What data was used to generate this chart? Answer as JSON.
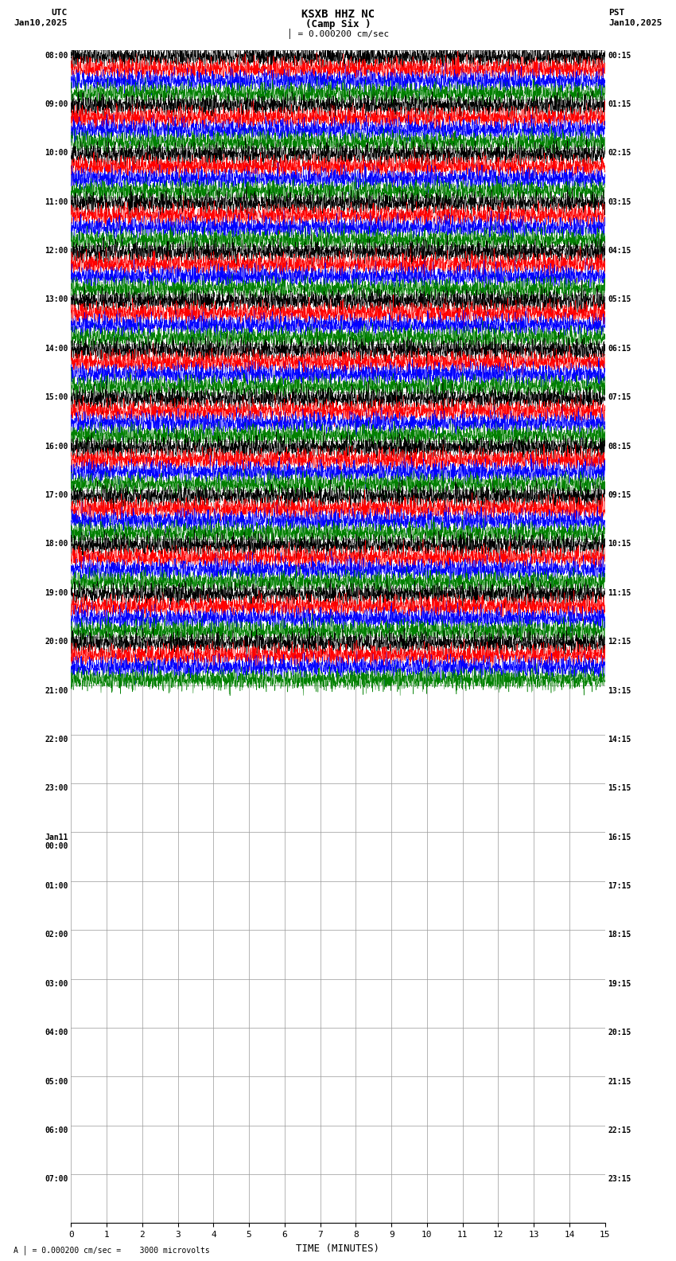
{
  "title_line1": "KSXB HHZ NC",
  "title_line2": "(Camp Six )",
  "scale_label": "= 0.000200 cm/sec",
  "bottom_label": "= 0.000200 cm/sec =    3000 microvolts",
  "left_header": "UTC",
  "right_header": "PST",
  "left_date": "Jan10,2025",
  "right_date": "Jan10,2025",
  "xlabel": "TIME (MINUTES)",
  "utc_labels": [
    "08:00",
    "09:00",
    "10:00",
    "11:00",
    "12:00",
    "13:00",
    "14:00",
    "15:00",
    "16:00",
    "17:00",
    "18:00",
    "19:00",
    "20:00",
    "21:00",
    "22:00",
    "23:00",
    "Jan11\n00:00",
    "01:00",
    "02:00",
    "03:00",
    "04:00",
    "05:00",
    "06:00",
    "07:00"
  ],
  "pst_labels": [
    "00:15",
    "01:15",
    "02:15",
    "03:15",
    "04:15",
    "05:15",
    "06:15",
    "07:15",
    "08:15",
    "09:15",
    "10:15",
    "11:15",
    "12:15",
    "13:15",
    "14:15",
    "15:15",
    "16:15",
    "17:15",
    "18:15",
    "19:15",
    "20:15",
    "21:15",
    "22:15",
    "23:15"
  ],
  "n_rows": 24,
  "active_rows": 13,
  "colors": [
    "black",
    "red",
    "blue",
    "green"
  ],
  "bg_color": "#ffffff",
  "fig_width": 8.5,
  "fig_height": 15.84
}
